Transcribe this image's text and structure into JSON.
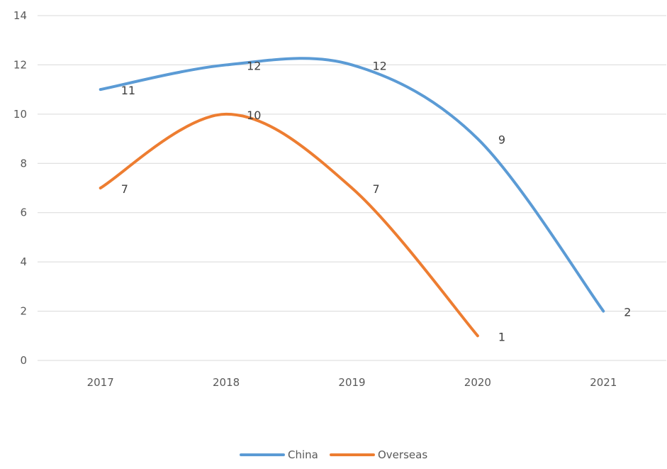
{
  "chart_data": {
    "type": "line",
    "smooth": true,
    "title": "",
    "xlabel": "",
    "ylabel": "",
    "categories": [
      "2017",
      "2018",
      "2019",
      "2020",
      "2021"
    ],
    "ylim": [
      0,
      14
    ],
    "yticks": [
      0,
      2,
      4,
      6,
      8,
      10,
      12,
      14
    ],
    "grid": "horizontal",
    "legend_position": "bottom",
    "series": [
      {
        "name": "China",
        "color": "#5b9bd5",
        "values": [
          11,
          12,
          12,
          9,
          2
        ]
      },
      {
        "name": "Overseas",
        "color": "#ed7d31",
        "values": [
          7,
          10,
          7,
          1,
          null
        ]
      }
    ]
  }
}
